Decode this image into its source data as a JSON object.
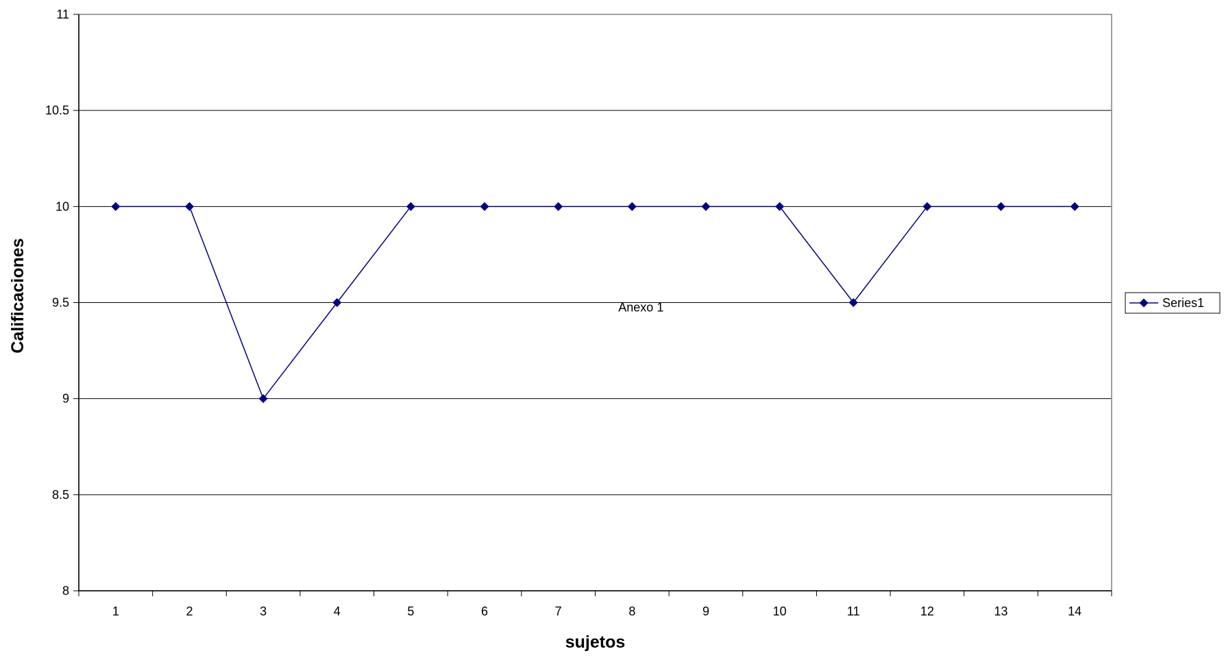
{
  "chart_data": {
    "type": "line",
    "title": "",
    "xlabel": "sujetos",
    "ylabel": "Calificaciones",
    "categories": [
      "1",
      "2",
      "3",
      "4",
      "5",
      "6",
      "7",
      "8",
      "9",
      "10",
      "11",
      "12",
      "13",
      "14"
    ],
    "series": [
      {
        "name": "Series1",
        "values": [
          10,
          10,
          9,
          9.5,
          10,
          10,
          10,
          10,
          10,
          10,
          9.5,
          10,
          10,
          10
        ],
        "color": "#000080",
        "marker": "diamond"
      }
    ],
    "ylim": [
      8,
      11
    ],
    "yticks": [
      8,
      8.5,
      9,
      9.5,
      10,
      10.5,
      11
    ],
    "ytick_labels": [
      "8",
      "8.5",
      "9",
      "9.5",
      "10",
      "10.5",
      "11"
    ],
    "grid": "horizontal",
    "legend_position": "right",
    "annotations": [
      {
        "text": "Anexo 1",
        "x": "8",
        "y": 9.5
      }
    ]
  }
}
